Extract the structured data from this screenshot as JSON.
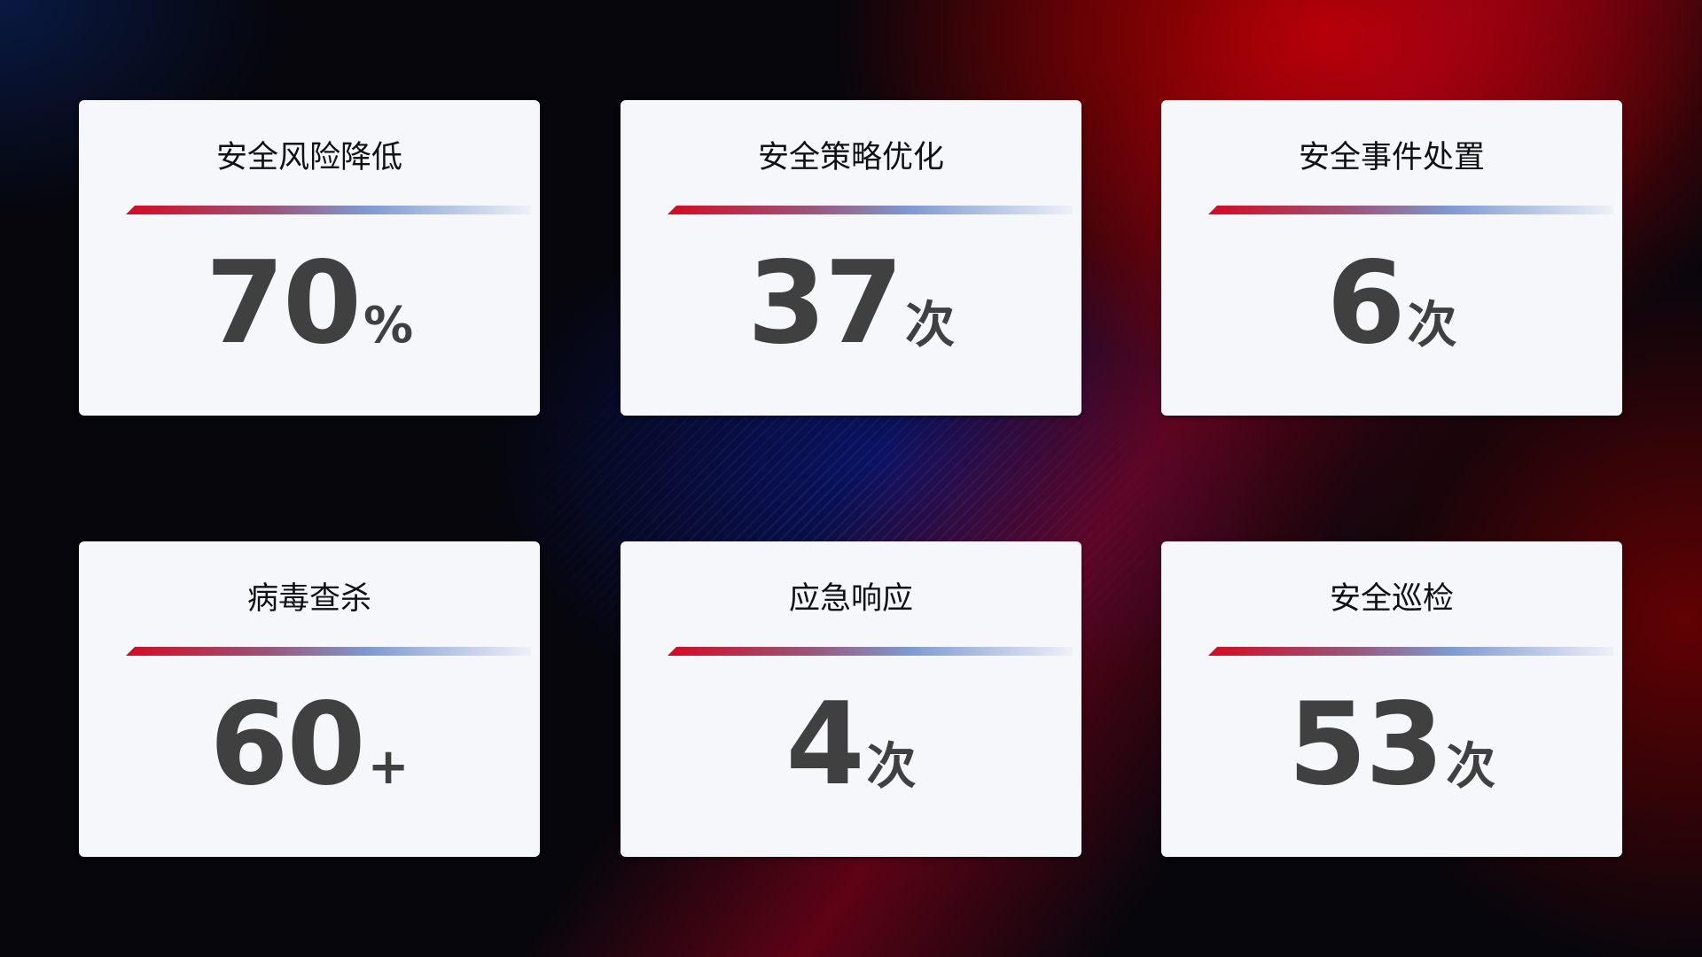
{
  "cards": [
    {
      "title": "安全风险降低",
      "value": "70",
      "unit": "%"
    },
    {
      "title": "安全策略优化",
      "value": "37",
      "unit": "次"
    },
    {
      "title": "安全事件处置",
      "value": "6",
      "unit": "次"
    },
    {
      "title": "病毒查杀",
      "value": "60",
      "unit": "+"
    },
    {
      "title": "应急响应",
      "value": "4",
      "unit": "次"
    },
    {
      "title": "安全巡检",
      "value": "53",
      "unit": "次"
    }
  ],
  "colors": {
    "accent_red": "#d40a22",
    "accent_blue": "#7f9ad0",
    "card_bg": "#f5f7fb"
  }
}
